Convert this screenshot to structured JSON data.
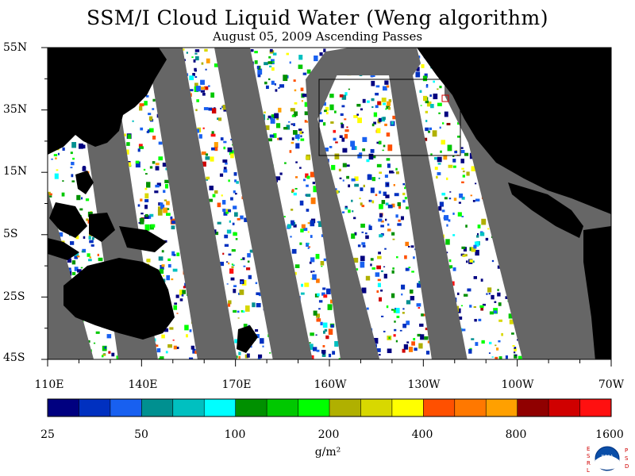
{
  "title": "SSM/I Cloud Liquid Water (Weng algorithm)",
  "subtitle": "August 05, 2009  Ascending Passes",
  "map": {
    "lat_labels": [
      "55N",
      "35N",
      "15N",
      "5S",
      "25S",
      "45S"
    ],
    "lon_labels": [
      "110E",
      "140E",
      "170E",
      "160W",
      "130W",
      "100W",
      "70W"
    ],
    "colors": {
      "ocean_no_cloud": "#ffffff",
      "land": "#000000",
      "swath_gap": "#666666"
    }
  },
  "colorbar": {
    "labels": [
      "25",
      "50",
      "100",
      "200",
      "400",
      "800",
      "1600"
    ],
    "units": "g/m²",
    "colors": [
      "#000080",
      "#0030c0",
      "#1860f0",
      "#009090",
      "#00c0c0",
      "#00ffff",
      "#009000",
      "#00c800",
      "#00ff00",
      "#b0b000",
      "#d8d800",
      "#ffff00",
      "#ff5000",
      "#ff7800",
      "#ffa000",
      "#900000",
      "#d00000",
      "#ff1010"
    ]
  },
  "logo": {
    "left_letters": "ESRL",
    "right_letters": "PSD",
    "name": "NOAA"
  }
}
